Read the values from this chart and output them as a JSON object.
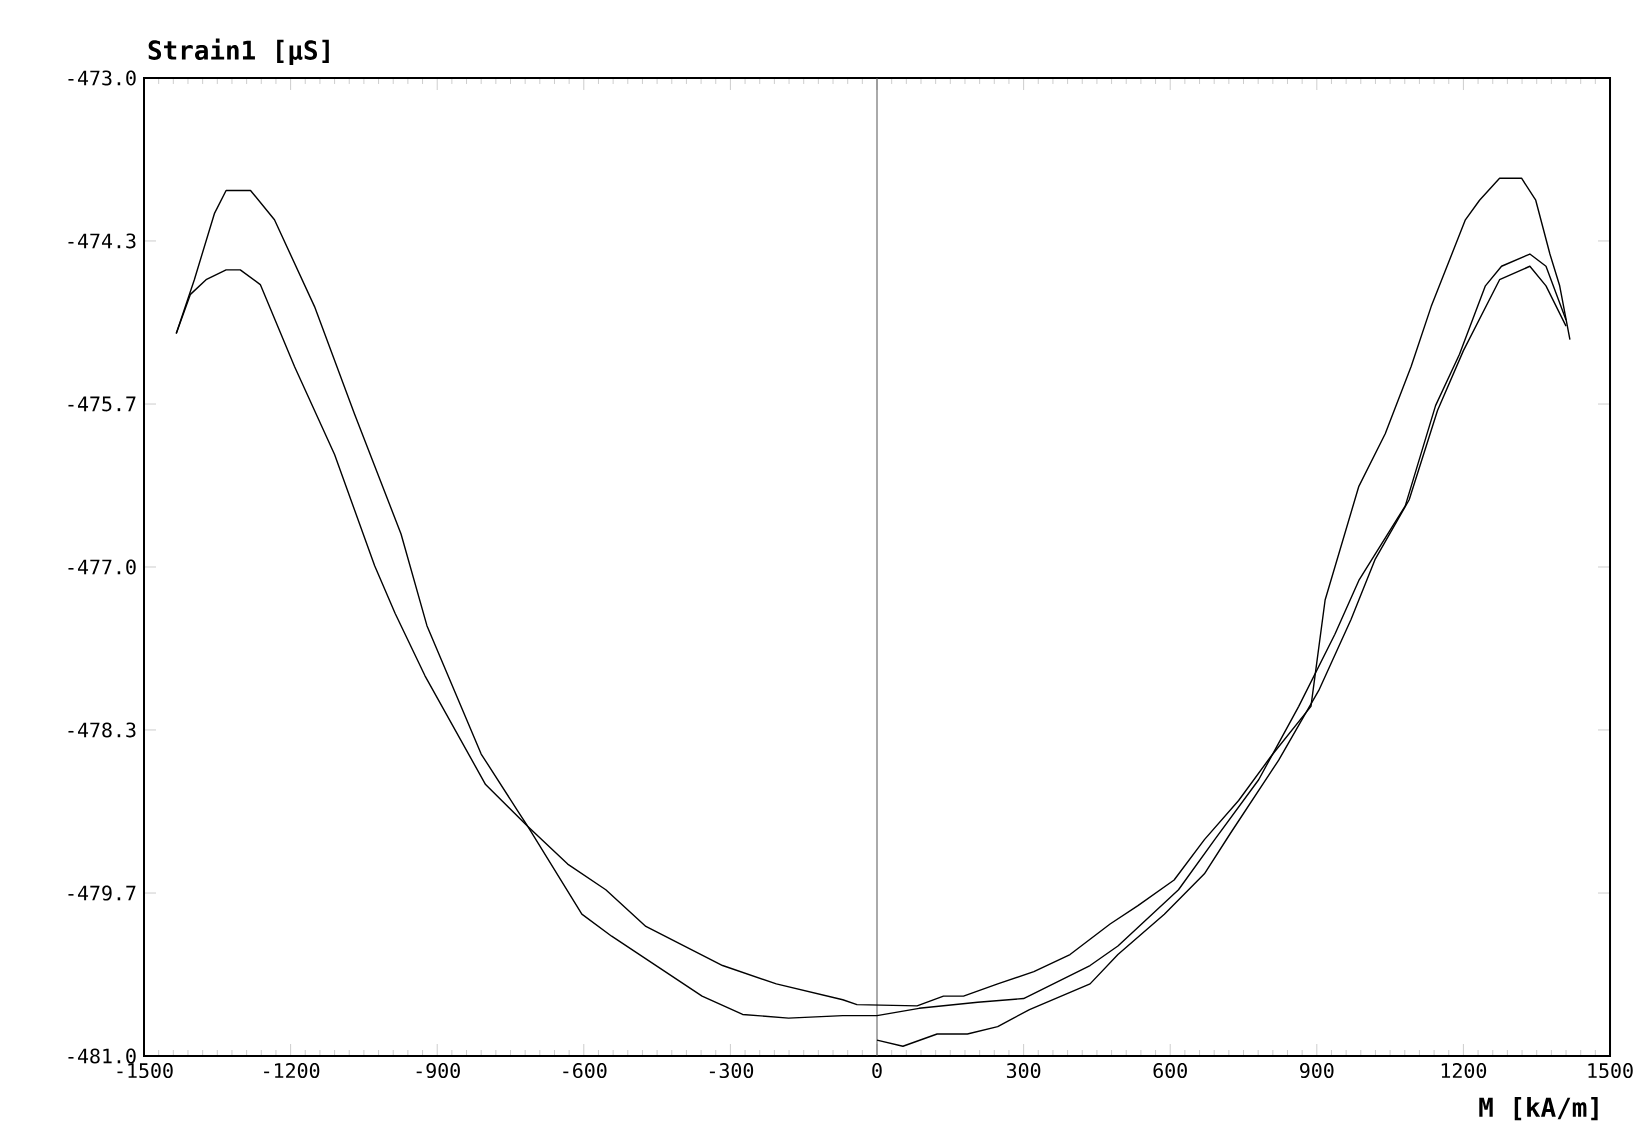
{
  "chart_data": {
    "type": "line",
    "xlabel": "M [kA/m]",
    "ylabel": "Strain1 [µS]",
    "xlim": [
      -1500,
      1500
    ],
    "ylim": [
      -481,
      -473
    ],
    "xticks": [
      -1500,
      -1200,
      -900,
      -600,
      -300,
      0,
      300,
      600,
      900,
      1200,
      1500
    ],
    "yticks": [
      {
        "value": -481,
        "label": "-481.0"
      },
      {
        "value": -479.667,
        "label": "-479.7"
      },
      {
        "value": -478.333,
        "label": "-478.3"
      },
      {
        "value": -477,
        "label": "-477.0"
      },
      {
        "value": -475.667,
        "label": "-475.7"
      },
      {
        "value": -474.333,
        "label": "-474.3"
      },
      {
        "value": -473,
        "label": "-473.0"
      }
    ],
    "grid": false,
    "marker": "none",
    "line_style": "solid",
    "ref_lines": [
      {
        "axis": "x",
        "value": 0,
        "color": "#555555"
      }
    ],
    "series": [
      {
        "color": "#000000",
        "x": [
          -1434,
          -1397,
          -1356,
          -1332,
          -1282,
          -1233,
          -1151,
          -1069,
          -974,
          -921,
          -810,
          -736,
          -715,
          -604,
          -543,
          -358,
          -275,
          -181,
          -70,
          0,
          86,
          206,
          300,
          436,
          493,
          617,
          691,
          781,
          863,
          937,
          986,
          1081,
          1143,
          1192,
          1245,
          1278,
          1336,
          1369,
          1410
        ],
        "values": [
          -475.09,
          -474.65,
          -474.11,
          -473.92,
          -473.92,
          -474.16,
          -474.87,
          -475.75,
          -476.73,
          -477.48,
          -478.53,
          -478.99,
          -479.12,
          -479.84,
          -480.02,
          -480.51,
          -480.66,
          -480.69,
          -480.67,
          -480.67,
          -480.61,
          -480.56,
          -480.53,
          -480.26,
          -480.1,
          -479.64,
          -479.23,
          -478.74,
          -478.14,
          -477.55,
          -477.11,
          -476.5,
          -475.68,
          -475.26,
          -474.7,
          -474.54,
          -474.44,
          -474.54,
          -474.98
        ]
      },
      {
        "color": "#000000",
        "x": [
          -1434,
          -1405,
          -1373,
          -1332,
          -1303,
          -1262,
          -1192,
          -1110,
          -1028,
          -986,
          -925,
          -801,
          -715,
          -633,
          -555,
          -473,
          -316,
          -206,
          -70,
          -41,
          82,
          136,
          177,
          247,
          321,
          395,
          477,
          534,
          608,
          670,
          740,
          806,
          888,
          917,
          986,
          1040,
          1093,
          1134,
          1204,
          1233,
          1274,
          1319,
          1348,
          1377,
          1397,
          1418
        ],
        "values": [
          -475.09,
          -474.77,
          -474.65,
          -474.57,
          -474.57,
          -474.69,
          -475.36,
          -476.08,
          -476.99,
          -477.38,
          -477.89,
          -478.78,
          -479.12,
          -479.43,
          -479.64,
          -479.94,
          -480.26,
          -480.41,
          -480.54,
          -480.58,
          -480.59,
          -480.51,
          -480.51,
          -480.41,
          -480.31,
          -480.17,
          -479.92,
          -479.77,
          -479.56,
          -479.23,
          -478.91,
          -478.55,
          -478.14,
          -477.27,
          -476.34,
          -475.91,
          -475.36,
          -474.87,
          -474.16,
          -474.0,
          -473.82,
          -473.82,
          -474.0,
          -474.44,
          -474.7,
          -475.14
        ]
      },
      {
        "color": "#000000",
        "x": [
          0,
          53,
          123,
          185,
          247,
          312,
          436,
          493,
          588,
          670,
          723,
          822,
          904,
          970,
          1019,
          1089,
          1147,
          1200,
          1274,
          1336,
          1369,
          1410
        ],
        "values": [
          -480.87,
          -480.92,
          -480.82,
          -480.82,
          -480.76,
          -480.62,
          -480.41,
          -480.17,
          -479.84,
          -479.51,
          -479.18,
          -478.58,
          -478.01,
          -477.43,
          -476.94,
          -476.45,
          -475.72,
          -475.23,
          -474.65,
          -474.54,
          -474.7,
          -475.03
        ]
      }
    ]
  }
}
